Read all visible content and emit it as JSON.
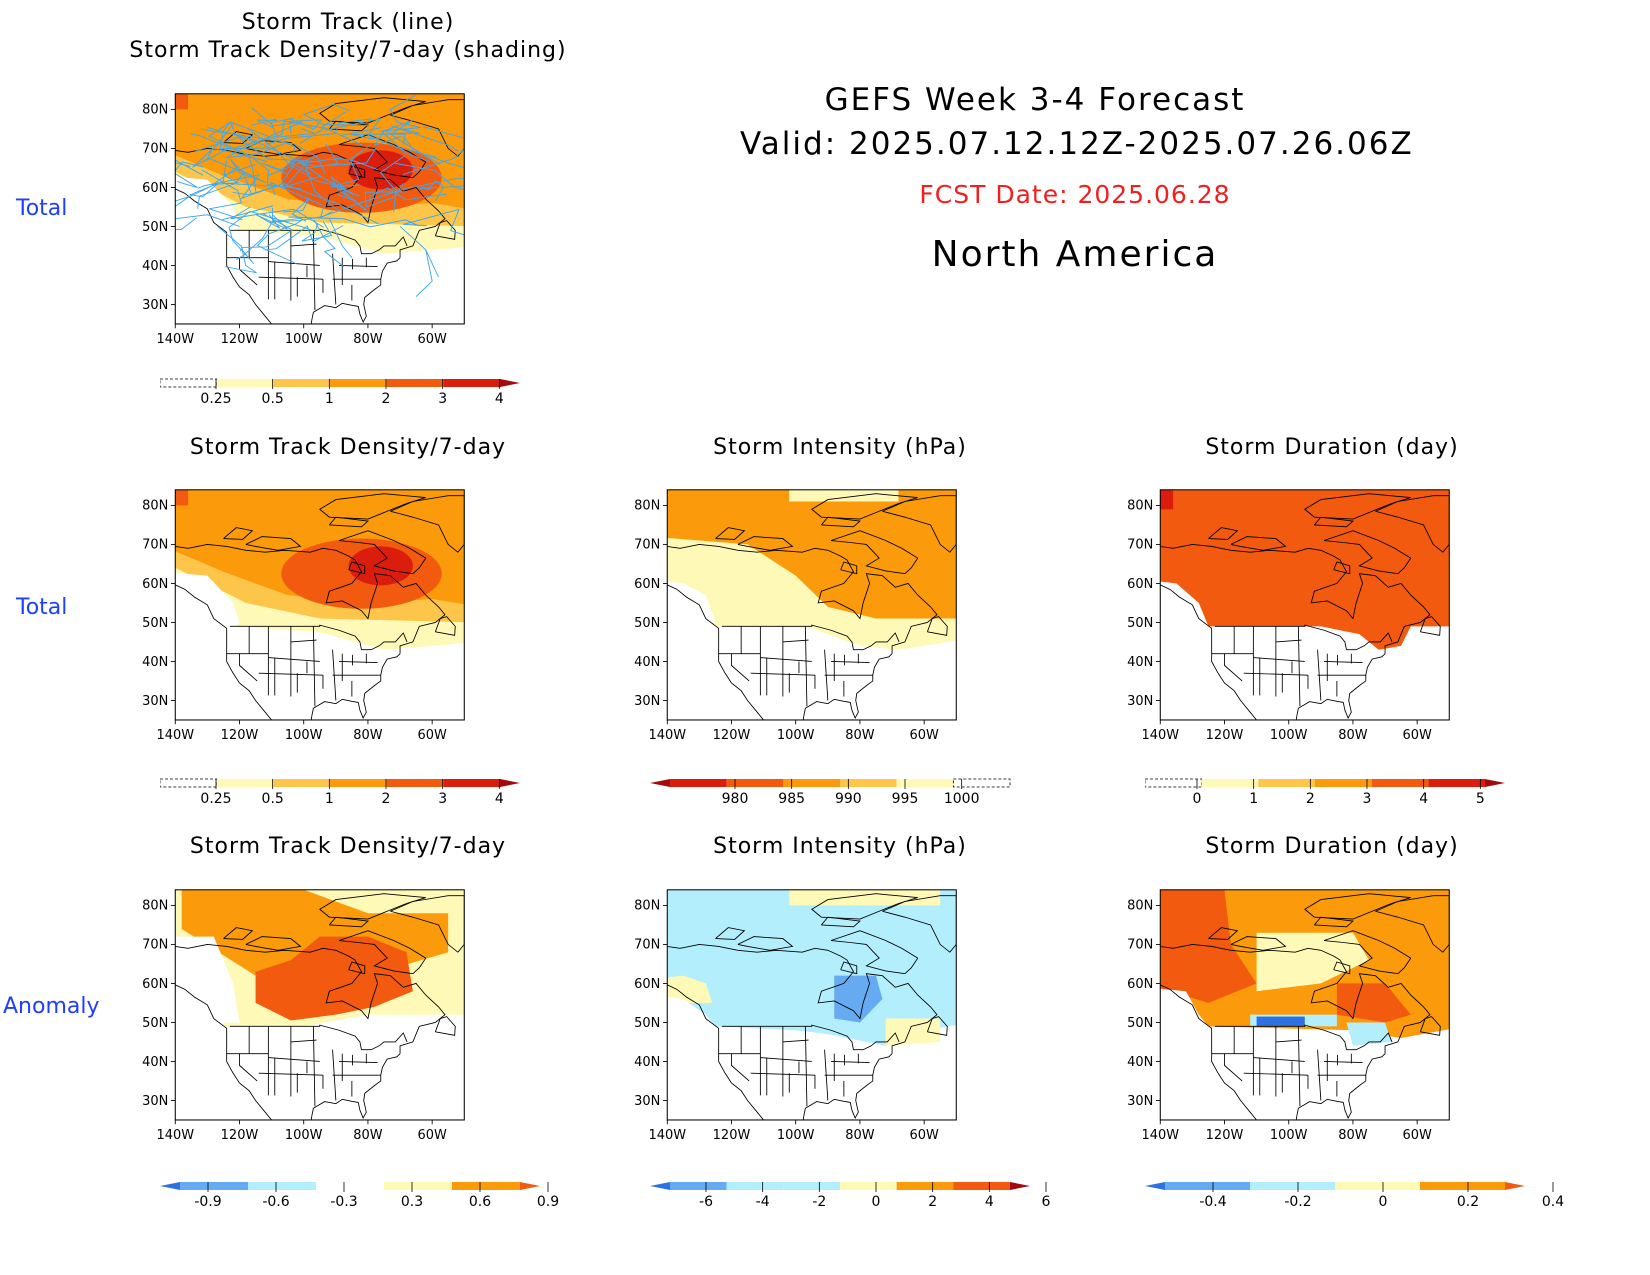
{
  "header": {
    "title": "GEFS Week 3-4 Forecast",
    "valid": "Valid: 2025.07.12.12Z-2025.07.26.06Z",
    "fcst_date": "FCST Date: 2025.06.28",
    "region": "North America"
  },
  "row_labels": {
    "row1": "Total",
    "row2": "Total",
    "row3": "Anomaly"
  },
  "panels": {
    "p1": {
      "title_line1": "Storm Track (line)",
      "title_line2": "Storm Track Density/7-day (shading)"
    },
    "p2": {
      "title": "Storm Track Density/7-day"
    },
    "p3": {
      "title": "Storm Intensity (hPa)"
    },
    "p4": {
      "title": "Storm Duration (day)"
    },
    "p5": {
      "title": "Storm Track Density/7-day"
    },
    "p6": {
      "title": "Storm Intensity (hPa)"
    },
    "p7": {
      "title": "Storm Duration (day)"
    }
  },
  "axes": {
    "lat_labels": [
      "80N",
      "70N",
      "60N",
      "50N",
      "40N",
      "30N"
    ],
    "lon_labels": [
      "140W",
      "120W",
      "100W",
      "80W",
      "60W"
    ]
  },
  "colorbars": {
    "density_total": {
      "labels": [
        "0.25",
        "0.5",
        "1",
        "2",
        "3",
        "4"
      ]
    },
    "intensity_total": {
      "labels": [
        "980",
        "985",
        "990",
        "995",
        "1000"
      ]
    },
    "duration_total": {
      "labels": [
        "0",
        "1",
        "2",
        "3",
        "4",
        "5"
      ]
    },
    "density_anom": {
      "labels": [
        "-0.9",
        "-0.6",
        "-0.3",
        "0.3",
        "0.6",
        "0.9"
      ]
    },
    "intensity_anom": {
      "labels": [
        "-6",
        "-4",
        "-2",
        "0",
        "2",
        "4",
        "6"
      ]
    },
    "duration_anom": {
      "labels": [
        "-0.4",
        "-0.2",
        "0",
        "0.2",
        "0.4"
      ]
    }
  },
  "colors": {
    "pale_yellow": "#fff9b8",
    "light_orange": "#fdc54a",
    "orange": "#fb9a0a",
    "red_orange": "#f25a0f",
    "red": "#db1d0d",
    "dark_red": "#a10b0b",
    "light_blue": "#b3eefd",
    "mid_blue": "#66aaf2",
    "blue": "#2d72e0",
    "track_line": "#3fa7f0",
    "label_blue": "#1f3fff",
    "fcst_red": "#f02020"
  }
}
